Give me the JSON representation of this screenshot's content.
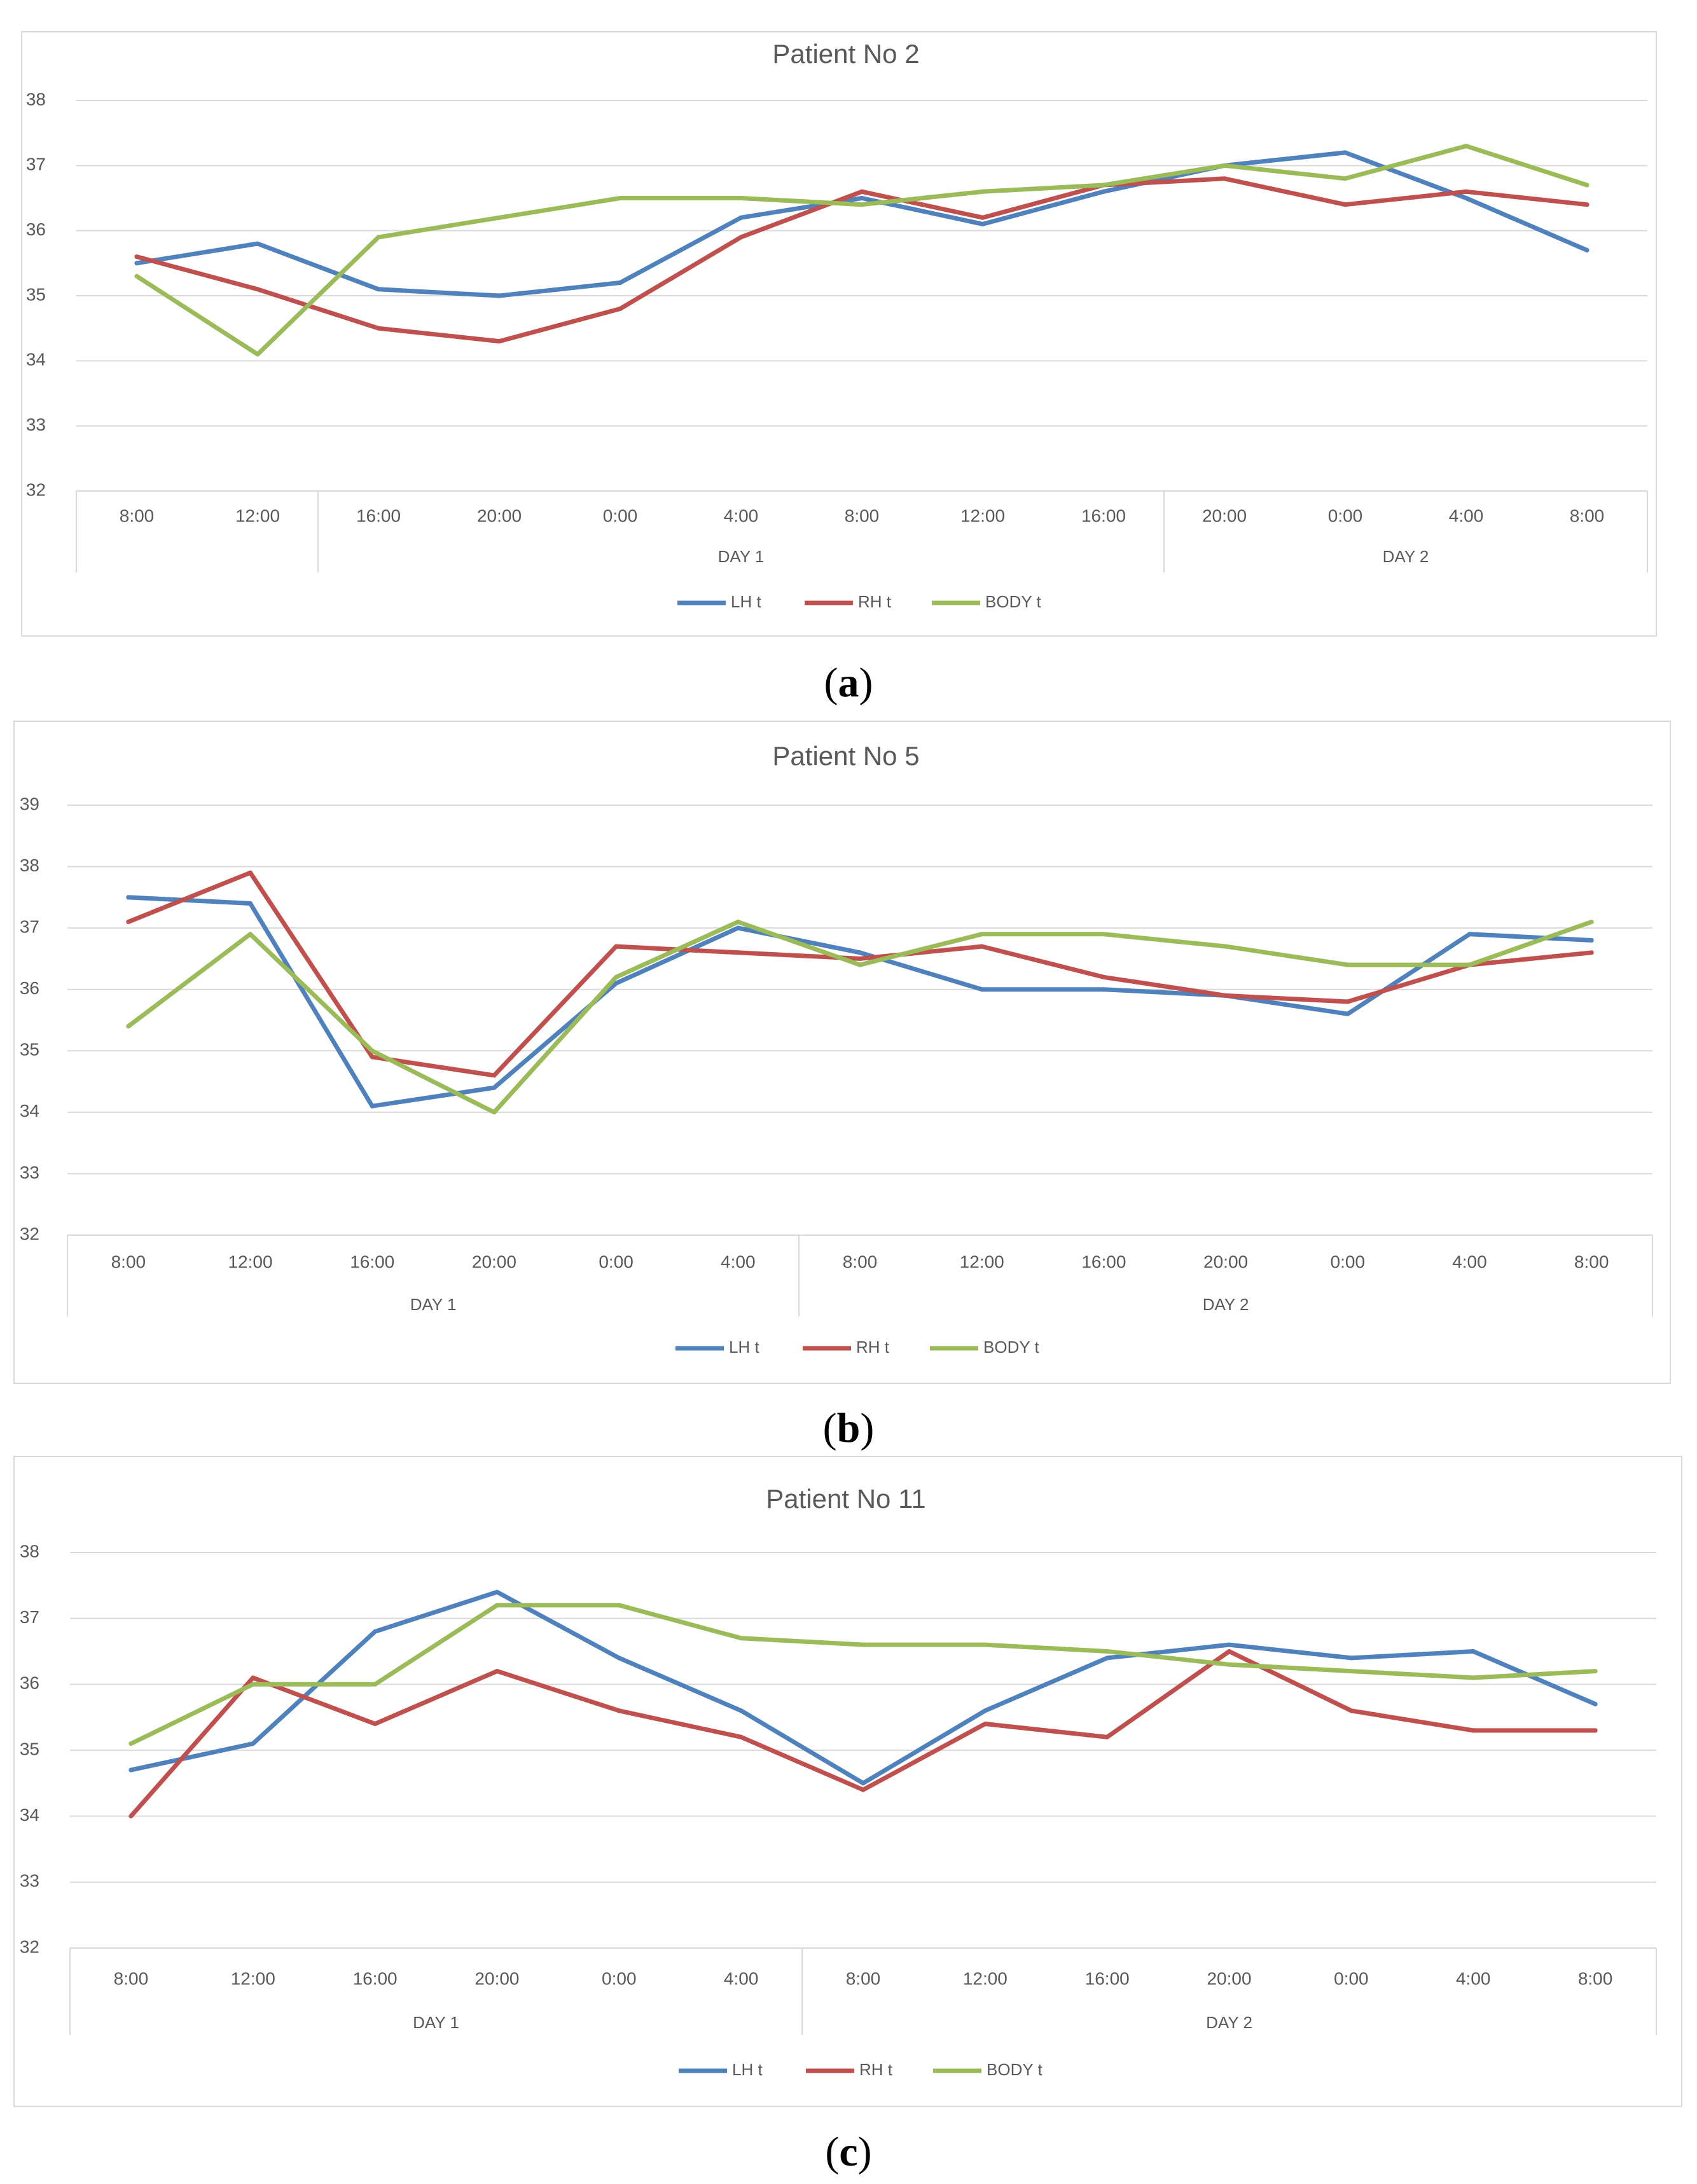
{
  "chart_data": [
    {
      "type": "line",
      "title": "Patient No 2",
      "panel_label": "a",
      "categories": [
        "8:00",
        "12:00",
        "16:00",
        "20:00",
        "0:00",
        "4:00",
        "8:00",
        "12:00",
        "16:00",
        "20:00",
        "0:00",
        "4:00",
        "8:00"
      ],
      "groups": [
        {
          "label": "",
          "start": 0,
          "end": 1
        },
        {
          "label": "DAY 1",
          "start": 2,
          "end": 8
        },
        {
          "label": "DAY 2",
          "start": 9,
          "end": 12
        }
      ],
      "yticks": [
        32,
        33,
        34,
        35,
        36,
        37,
        38
      ],
      "ylim": [
        32,
        38
      ],
      "series": [
        {
          "name": "LH t",
          "color": "#4f81bd",
          "values": [
            35.5,
            35.8,
            35.1,
            35.0,
            35.2,
            36.2,
            36.5,
            36.1,
            36.6,
            37.0,
            37.2,
            36.5,
            35.7
          ]
        },
        {
          "name": "RH t",
          "color": "#c0504d",
          "values": [
            35.6,
            35.1,
            34.5,
            34.3,
            34.8,
            35.9,
            36.6,
            36.2,
            36.7,
            36.8,
            36.4,
            36.6,
            36.4
          ]
        },
        {
          "name": "BODY t",
          "color": "#9bbb59",
          "values": [
            35.3,
            34.1,
            35.9,
            36.2,
            36.5,
            36.5,
            36.4,
            36.6,
            36.7,
            37.0,
            36.8,
            37.3,
            36.7
          ]
        }
      ]
    },
    {
      "type": "line",
      "title": "Patient No 5",
      "panel_label": "b",
      "categories": [
        "8:00",
        "12:00",
        "16:00",
        "20:00",
        "0:00",
        "4:00",
        "8:00",
        "12:00",
        "16:00",
        "20:00",
        "0:00",
        "4:00",
        "8:00"
      ],
      "groups": [
        {
          "label": "DAY 1",
          "start": 0,
          "end": 5
        },
        {
          "label": "DAY 2",
          "start": 6,
          "end": 12
        }
      ],
      "yticks": [
        32,
        33,
        34,
        35,
        36,
        37,
        38,
        39
      ],
      "ylim": [
        32,
        39
      ],
      "series": [
        {
          "name": "LH t",
          "color": "#4f81bd",
          "values": [
            37.5,
            37.4,
            34.1,
            34.4,
            36.1,
            37.0,
            36.6,
            36.0,
            36.0,
            35.9,
            35.6,
            36.9,
            36.8
          ]
        },
        {
          "name": "RH t",
          "color": "#c0504d",
          "values": [
            37.1,
            37.9,
            34.9,
            34.6,
            36.7,
            36.6,
            36.5,
            36.7,
            36.2,
            35.9,
            35.8,
            36.4,
            36.6
          ]
        },
        {
          "name": "BODY t",
          "color": "#9bbb59",
          "values": [
            35.4,
            36.9,
            35.0,
            34.0,
            36.2,
            37.1,
            36.4,
            36.9,
            36.9,
            36.7,
            36.4,
            36.4,
            37.1
          ]
        }
      ]
    },
    {
      "type": "line",
      "title": "Patient No 11",
      "panel_label": "c",
      "categories": [
        "8:00",
        "12:00",
        "16:00",
        "20:00",
        "0:00",
        "4:00",
        "8:00",
        "12:00",
        "16:00",
        "20:00",
        "0:00",
        "4:00",
        "8:00"
      ],
      "groups": [
        {
          "label": "DAY 1",
          "start": 0,
          "end": 5
        },
        {
          "label": "DAY 2",
          "start": 6,
          "end": 12
        }
      ],
      "yticks": [
        32,
        33,
        34,
        35,
        36,
        37,
        38
      ],
      "ylim": [
        32,
        38
      ],
      "series": [
        {
          "name": "LH t",
          "color": "#4f81bd",
          "values": [
            34.7,
            35.1,
            36.8,
            37.4,
            36.4,
            35.6,
            34.5,
            35.6,
            36.4,
            36.6,
            36.4,
            36.5,
            35.7
          ]
        },
        {
          "name": "RH t",
          "color": "#c0504d",
          "values": [
            34.0,
            36.1,
            35.4,
            36.2,
            35.6,
            35.2,
            34.4,
            35.4,
            35.2,
            36.5,
            35.6,
            35.3,
            35.3
          ]
        },
        {
          "name": "BODY t",
          "color": "#9bbb59",
          "values": [
            35.1,
            36.0,
            36.0,
            37.2,
            37.2,
            36.7,
            36.6,
            36.6,
            36.5,
            36.3,
            36.2,
            36.1,
            36.2
          ]
        }
      ]
    }
  ]
}
